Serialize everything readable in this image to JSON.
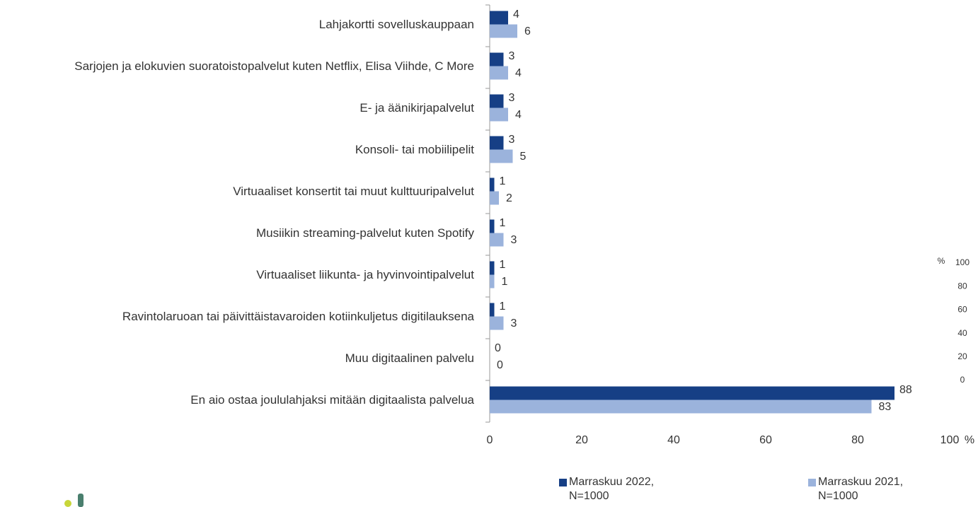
{
  "chart_data": {
    "type": "bar",
    "orientation": "horizontal",
    "categories": [
      "Lahjakortti sovelluskauppaan",
      "Sarjojen ja elokuvien suoratoistopalvelut kuten Netflix, Elisa Viihde, C More",
      "E- ja äänikirjapalvelut",
      "Konsoli- tai mobiilipelit",
      "Virtuaaliset konsertit tai muut kulttuuripalvelut",
      "Musiikin streaming-palvelut kuten Spotify",
      "Virtuaaliset liikunta- ja hyvinvointipalvelut",
      "Ravintolaruoan tai päivittäistavaroiden kotiinkuljetus digitilauksena",
      "Muu digitaalinen palvelu",
      "En aio ostaa joululahjaksi mitään digitaalista palvelua"
    ],
    "series": [
      {
        "name": "Marraskuu 2022, N=1000",
        "color": "#163f85",
        "values": [
          4,
          3,
          3,
          3,
          1,
          1,
          1,
          1,
          0,
          88
        ]
      },
      {
        "name": "Marraskuu 2021, N=1000",
        "color": "#9bb3dc",
        "values": [
          6,
          4,
          4,
          5,
          2,
          3,
          1,
          3,
          0,
          83
        ]
      }
    ],
    "xlim": [
      0,
      100
    ],
    "xticks": [
      0,
      20,
      40,
      60,
      80,
      100
    ],
    "x_unit": "%",
    "y2lim": [
      0,
      100
    ],
    "y2ticks": [
      0,
      20,
      40,
      60,
      80,
      100
    ],
    "y2_unit": "%",
    "grid": false
  }
}
